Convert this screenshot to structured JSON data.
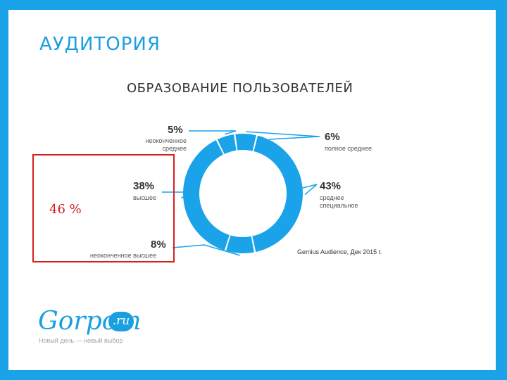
{
  "slide": {
    "heading": "АУДИТОРИЯ",
    "highlight_value": "46 %",
    "source": "Gemius Audience, Дек 2015 г.",
    "logo_text": "Gorpom",
    "logo_badge": ".ru",
    "tagline": "Новый день — новый выбор"
  },
  "colors": {
    "accent": "#1aa3e8",
    "highlight_border": "#d62020",
    "highlight_text": "#cc1c1c"
  },
  "chart_data": {
    "type": "pie",
    "title": "ОБРАЗОВАНИЕ ПОЛЬЗОВАТЕЛЕЙ",
    "categories": [
      "неоконченное среднее",
      "полное среднее",
      "среднее специальное",
      "неоконченное высшее",
      "высшее"
    ],
    "values": [
      5,
      6,
      43,
      8,
      38
    ],
    "value_labels": [
      "5%",
      "6%",
      "43%",
      "8%",
      "38%"
    ],
    "legend": "none"
  }
}
